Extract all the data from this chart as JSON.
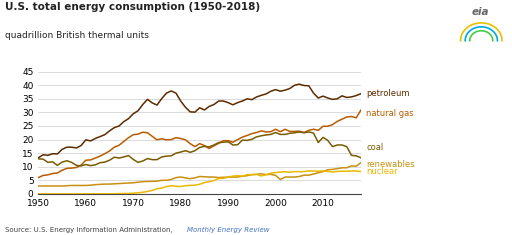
{
  "title": "U.S. total energy consumption (1950-2018)",
  "subtitle": "quadrillion British thermal units",
  "source_text": "Source: U.S. Energy Information Administration, ",
  "source_link": "Monthly Energy Review",
  "years": [
    1950,
    1951,
    1952,
    1953,
    1954,
    1955,
    1956,
    1957,
    1958,
    1959,
    1960,
    1961,
    1962,
    1963,
    1964,
    1965,
    1966,
    1967,
    1968,
    1969,
    1970,
    1971,
    1972,
    1973,
    1974,
    1975,
    1976,
    1977,
    1978,
    1979,
    1980,
    1981,
    1982,
    1983,
    1984,
    1985,
    1986,
    1987,
    1988,
    1989,
    1990,
    1991,
    1992,
    1993,
    1994,
    1995,
    1996,
    1997,
    1998,
    1999,
    2000,
    2001,
    2002,
    2003,
    2004,
    2005,
    2006,
    2007,
    2008,
    2009,
    2010,
    2011,
    2012,
    2013,
    2014,
    2015,
    2016,
    2017,
    2018
  ],
  "petroleum": [
    13.3,
    14.4,
    14.2,
    14.8,
    14.7,
    16.4,
    17.2,
    17.2,
    16.9,
    17.8,
    19.9,
    19.5,
    20.4,
    21.1,
    21.8,
    23.2,
    24.4,
    25.0,
    26.6,
    27.7,
    29.5,
    30.6,
    32.9,
    34.8,
    33.5,
    32.7,
    35.1,
    37.1,
    37.9,
    37.1,
    34.2,
    31.9,
    30.2,
    30.1,
    31.7,
    30.9,
    32.2,
    32.9,
    34.2,
    34.2,
    33.6,
    32.8,
    33.6,
    34.2,
    35.0,
    34.7,
    35.7,
    36.3,
    36.8,
    37.8,
    38.4,
    37.8,
    38.2,
    38.8,
    40.0,
    40.4,
    39.9,
    39.8,
    37.1,
    35.3,
    36.0,
    35.3,
    34.8,
    35.0,
    36.1,
    35.5,
    35.7,
    36.2,
    36.9
  ],
  "natural_gas": [
    6.0,
    6.8,
    7.0,
    7.5,
    7.7,
    8.7,
    9.4,
    9.5,
    9.7,
    10.6,
    12.4,
    12.5,
    13.2,
    13.9,
    14.8,
    15.8,
    17.2,
    17.9,
    19.3,
    20.7,
    21.8,
    22.0,
    22.7,
    22.5,
    21.2,
    19.9,
    20.3,
    19.9,
    20.0,
    20.7,
    20.4,
    19.9,
    18.5,
    17.4,
    18.5,
    17.8,
    16.7,
    17.7,
    18.6,
    19.6,
    19.6,
    19.0,
    20.0,
    20.9,
    21.5,
    22.2,
    22.6,
    23.2,
    22.8,
    22.9,
    23.8,
    22.9,
    23.8,
    23.0,
    23.0,
    23.1,
    22.6,
    23.4,
    23.8,
    23.4,
    24.9,
    24.9,
    25.5,
    26.7,
    27.5,
    28.3,
    28.5,
    28.0,
    30.9
  ],
  "coal": [
    12.9,
    12.8,
    11.6,
    11.8,
    10.5,
    11.7,
    12.2,
    11.6,
    10.5,
    10.3,
    10.8,
    10.4,
    10.7,
    11.5,
    11.7,
    12.4,
    13.5,
    13.2,
    13.6,
    14.1,
    12.7,
    11.6,
    12.1,
    13.0,
    12.6,
    12.6,
    13.6,
    13.9,
    14.0,
    15.0,
    15.4,
    15.9,
    15.3,
    15.9,
    17.1,
    17.5,
    17.3,
    18.0,
    18.9,
    19.0,
    19.2,
    18.0,
    18.1,
    19.8,
    19.7,
    20.1,
    21.0,
    21.4,
    21.7,
    21.9,
    22.6,
    21.9,
    21.9,
    22.3,
    22.5,
    22.8,
    22.5,
    22.8,
    22.4,
    18.9,
    20.8,
    19.7,
    17.4,
    18.0,
    18.0,
    17.4,
    14.2,
    14.0,
    13.3
  ],
  "renewables": [
    2.9,
    2.9,
    2.9,
    2.9,
    2.9,
    2.9,
    3.0,
    3.1,
    3.1,
    3.1,
    3.1,
    3.2,
    3.4,
    3.5,
    3.6,
    3.6,
    3.7,
    3.8,
    3.9,
    4.0,
    4.1,
    4.3,
    4.5,
    4.6,
    4.6,
    4.7,
    5.0,
    5.0,
    5.3,
    6.0,
    6.2,
    5.9,
    5.6,
    5.9,
    6.4,
    6.3,
    6.2,
    6.2,
    6.0,
    6.1,
    6.2,
    6.2,
    6.2,
    6.5,
    6.7,
    7.1,
    7.2,
    7.4,
    7.1,
    7.2,
    6.8,
    5.3,
    6.2,
    6.2,
    6.2,
    6.4,
    6.9,
    6.9,
    7.3,
    7.8,
    8.2,
    8.9,
    9.0,
    9.3,
    9.6,
    9.6,
    10.3,
    10.2,
    11.5
  ],
  "nuclear": [
    0.0,
    0.0,
    0.0,
    0.0,
    0.0,
    0.0,
    0.0,
    0.0,
    0.0,
    0.0,
    0.01,
    0.02,
    0.03,
    0.04,
    0.04,
    0.04,
    0.06,
    0.09,
    0.14,
    0.15,
    0.24,
    0.41,
    0.58,
    0.91,
    1.27,
    1.9,
    2.13,
    2.7,
    3.02,
    2.78,
    2.74,
    3.01,
    3.13,
    3.2,
    3.55,
    4.15,
    4.47,
    4.92,
    5.66,
    5.71,
    6.16,
    6.55,
    6.66,
    6.52,
    7.07,
    7.08,
    7.17,
    6.6,
    7.07,
    7.61,
    7.86,
    8.03,
    8.14,
    7.97,
    8.22,
    8.16,
    8.22,
    8.45,
    8.43,
    8.35,
    8.43,
    8.26,
    8.05,
    8.27,
    8.34,
    8.34,
    8.43,
    8.42,
    8.26
  ],
  "petroleum_color": "#5c2b00",
  "natural_gas_color": "#b85c00",
  "coal_color": "#7a5c00",
  "renewables_color": "#c89010",
  "nuclear_color": "#e8b800",
  "xlim": [
    1950,
    2018
  ],
  "ylim": [
    0,
    45
  ],
  "yticks": [
    0,
    5,
    10,
    15,
    20,
    25,
    30,
    35,
    40,
    45
  ],
  "xticks": [
    1950,
    1960,
    1970,
    1980,
    1990,
    2000,
    2010
  ],
  "background_color": "#ffffff",
  "grid_color": "#cccccc"
}
